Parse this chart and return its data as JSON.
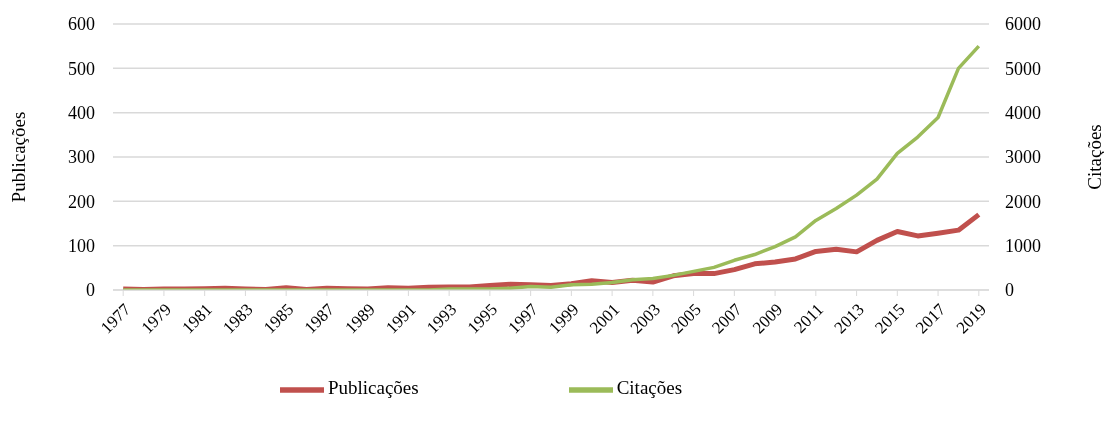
{
  "chart_data": {
    "type": "line",
    "ylabel": "Publicações",
    "y2label": "Citações",
    "x": [
      1977,
      1978,
      1979,
      1980,
      1981,
      1982,
      1983,
      1984,
      1985,
      1986,
      1987,
      1988,
      1989,
      1990,
      1991,
      1992,
      1993,
      1994,
      1995,
      1996,
      1997,
      1998,
      1999,
      2000,
      2001,
      2002,
      2003,
      2004,
      2005,
      2006,
      2007,
      2008,
      2009,
      2010,
      2011,
      2012,
      2013,
      2014,
      2015,
      2016,
      2017,
      2018,
      2019
    ],
    "xlim": [
      1976.5,
      2019.5
    ],
    "xticks": [
      1977,
      1979,
      1981,
      1983,
      1985,
      1987,
      1989,
      1991,
      1993,
      1995,
      1997,
      1999,
      2001,
      2003,
      2005,
      2007,
      2009,
      2011,
      2013,
      2015,
      2017,
      2019
    ],
    "ylim": [
      0,
      600
    ],
    "yticks": [
      0,
      100,
      200,
      300,
      400,
      500,
      600
    ],
    "y2lim": [
      0,
      6000
    ],
    "y2ticks": [
      0,
      1000,
      2000,
      3000,
      4000,
      5000,
      6000
    ],
    "grid": "y",
    "legend": "bottom",
    "series": [
      {
        "name": "Publicações",
        "color": "#c0504d",
        "values": [
          2,
          1,
          2,
          2,
          3,
          4,
          2,
          1,
          5,
          1,
          4,
          3,
          2,
          5,
          4,
          6,
          7,
          7,
          10,
          13,
          12,
          10,
          14,
          21,
          17,
          22,
          18,
          32,
          37,
          37,
          46,
          59,
          63,
          70,
          87,
          92,
          86,
          112,
          132,
          122,
          128,
          135,
          170
        ]
      },
      {
        "name": "Citações",
        "color": "#9bbb59",
        "axis": "y2",
        "values": [
          0,
          0,
          0,
          0,
          0,
          0,
          0,
          0,
          0,
          0,
          0,
          0,
          0,
          0,
          0,
          0,
          20,
          20,
          20,
          40,
          80,
          60,
          120,
          130,
          170,
          230,
          260,
          330,
          420,
          510,
          670,
          800,
          980,
          1200,
          1570,
          1840,
          2140,
          2500,
          3080,
          3450,
          3890,
          5000,
          5500
        ]
      }
    ]
  }
}
